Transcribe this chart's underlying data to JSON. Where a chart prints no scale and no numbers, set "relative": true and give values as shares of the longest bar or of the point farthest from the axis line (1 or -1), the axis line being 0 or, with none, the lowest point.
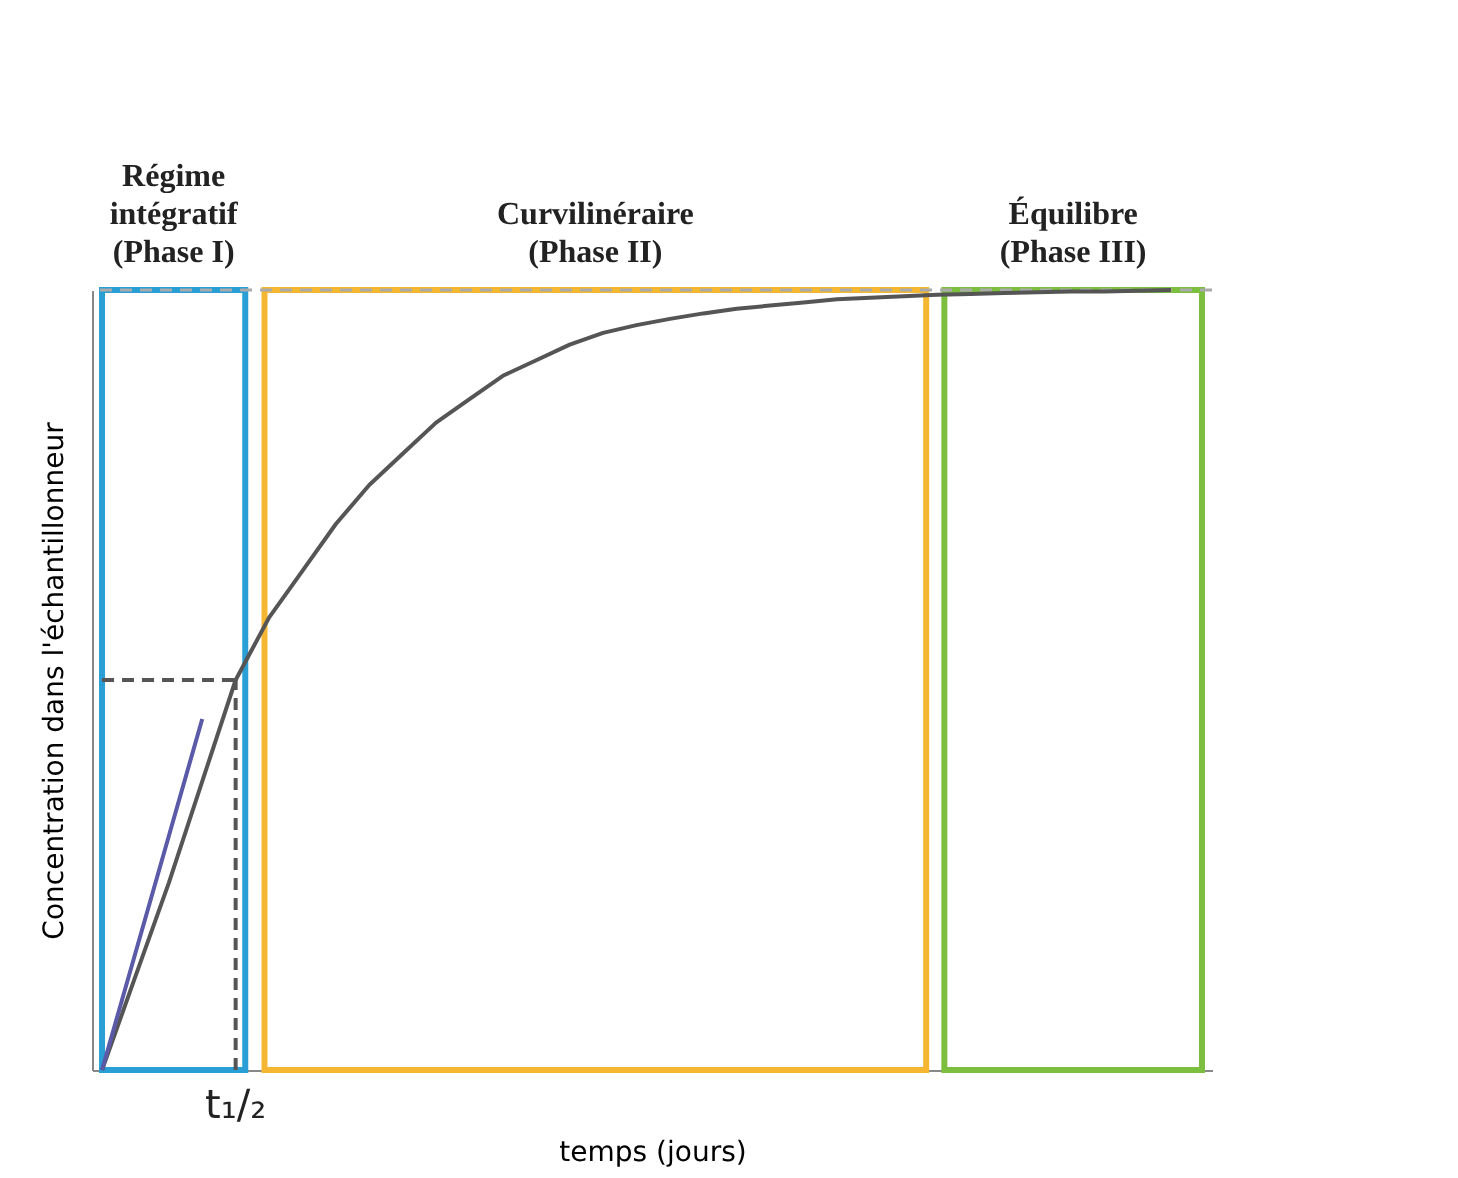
{
  "chart_data": {
    "type": "line",
    "relative": true,
    "xlabel": "temps (jours)",
    "ylabel": "Concentration dans l'échantillonneur",
    "categories": [
      null,
      null,
      null,
      null,
      null,
      null,
      null,
      null,
      null,
      null,
      null,
      null,
      null,
      null,
      null,
      null,
      null,
      null,
      null,
      null,
      null,
      null,
      null,
      null,
      null,
      null,
      null,
      null,
      null,
      null,
      null,
      null,
      null
    ],
    "tick_labels": false,
    "marker": "none",
    "annotations": [
      "t₁/₂",
      "Régime\nintégratif\n(Phase I)",
      "Curvilinéraire\n(Phase II)",
      "Équilibre\n(Phase III)"
    ],
    "series": [
      {
        "type": "line",
        "color": "#555555",
        "line_style": "solid",
        "values": [
          0,
          0.12,
          0.24,
          0.37,
          0.5,
          0.58,
          0.64,
          0.7,
          0.75,
          0.79,
          0.83,
          0.86,
          0.89,
          0.91,
          0.93,
          0.945,
          0.955,
          0.963,
          0.97,
          0.976,
          0.98,
          0.984,
          0.988,
          0.99,
          0.992,
          0.994,
          0.995,
          0.996,
          0.997,
          0.998,
          0.998,
          0.999,
          1.0
        ]
      },
      {
        "type": "line",
        "color": "#5a5aa8",
        "line_style": "solid",
        "values": [
          0,
          0.15,
          0.3,
          0.45,
          null,
          null,
          null,
          null,
          null,
          null,
          null,
          null,
          null,
          null,
          null,
          null,
          null,
          null,
          null,
          null,
          null,
          null,
          null,
          null,
          null,
          null,
          null,
          null,
          null,
          null,
          null,
          null,
          null
        ]
      },
      {
        "type": "line",
        "color": "#555555",
        "line_style": "dashed",
        "values": [
          0.5,
          0.5,
          0.5,
          0.5,
          0.5,
          null,
          null,
          null,
          null,
          null,
          null,
          null,
          null,
          null,
          null,
          null,
          null,
          null,
          null,
          null,
          null,
          null,
          null,
          null,
          null,
          null,
          null,
          null,
          null,
          null,
          null,
          null,
          null
        ]
      }
    ],
    "ref_lines": [
      {
        "axis": "y",
        "value": 1,
        "color": "#aaaaaa",
        "line_style": "dashed"
      }
    ]
  }
}
